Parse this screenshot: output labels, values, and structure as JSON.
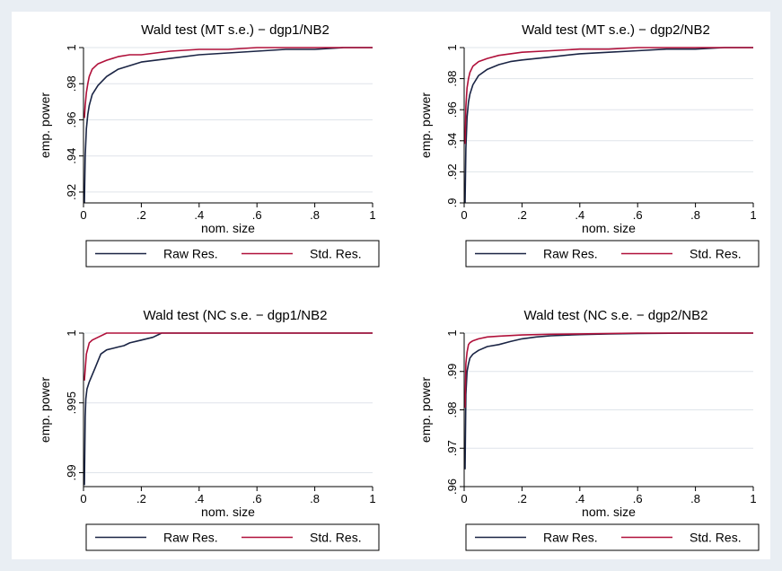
{
  "colors": {
    "raw": "#1a2444",
    "std": "#b0103a",
    "grid": "#dfe4ea",
    "axis": "#000000"
  },
  "chart_data": [
    {
      "type": "line",
      "title": "Wald test (MT s.e.) − dgp1/NB2",
      "xlabel": "nom. size",
      "ylabel": "emp. power",
      "xlim": [
        0,
        1
      ],
      "ylim": [
        0.914,
        1.0
      ],
      "xticks": [
        0,
        0.2,
        0.4,
        0.6,
        0.8,
        1
      ],
      "xtick_labels": [
        "0",
        ".2",
        ".4",
        ".6",
        ".8",
        "1"
      ],
      "yticks": [
        0.92,
        0.94,
        0.96,
        0.98,
        1
      ],
      "ytick_labels": [
        ".92",
        ".94",
        ".96",
        ".98",
        "1"
      ],
      "grid": true,
      "legend_position": "bottom",
      "series": [
        {
          "name": "Raw Res.",
          "color_key": "raw",
          "x": [
            0.003,
            0.006,
            0.01,
            0.015,
            0.02,
            0.03,
            0.05,
            0.08,
            0.12,
            0.16,
            0.2,
            0.3,
            0.4,
            0.5,
            0.6,
            0.7,
            0.8,
            0.9,
            1.0
          ],
          "y": [
            0.914,
            0.94,
            0.955,
            0.963,
            0.968,
            0.974,
            0.979,
            0.984,
            0.988,
            0.99,
            0.992,
            0.994,
            0.996,
            0.997,
            0.998,
            0.999,
            0.999,
            1.0,
            1.0
          ]
        },
        {
          "name": "Std. Res.",
          "color_key": "std",
          "x": [
            0.003,
            0.006,
            0.01,
            0.015,
            0.02,
            0.03,
            0.05,
            0.08,
            0.12,
            0.16,
            0.2,
            0.3,
            0.4,
            0.5,
            0.6,
            0.7,
            0.8,
            0.9,
            1.0
          ],
          "y": [
            0.961,
            0.968,
            0.975,
            0.98,
            0.984,
            0.988,
            0.991,
            0.993,
            0.995,
            0.996,
            0.996,
            0.998,
            0.999,
            0.999,
            1.0,
            1.0,
            1.0,
            1.0,
            1.0
          ]
        }
      ]
    },
    {
      "type": "line",
      "title": "Wald test (MT s.e.) − dgp2/NB2",
      "xlabel": "nom. size",
      "ylabel": "emp. power",
      "xlim": [
        0,
        1
      ],
      "ylim": [
        0.9,
        1.0
      ],
      "xticks": [
        0,
        0.2,
        0.4,
        0.6,
        0.8,
        1
      ],
      "xtick_labels": [
        "0",
        ".2",
        ".4",
        ".6",
        ".8",
        "1"
      ],
      "yticks": [
        0.9,
        0.92,
        0.94,
        0.96,
        0.98,
        1
      ],
      "ytick_labels": [
        ".9",
        ".92",
        ".94",
        ".96",
        ".98",
        "1"
      ],
      "grid": true,
      "legend_position": "bottom",
      "series": [
        {
          "name": "Raw Res.",
          "color_key": "raw",
          "x": [
            0.003,
            0.006,
            0.01,
            0.015,
            0.02,
            0.03,
            0.05,
            0.08,
            0.12,
            0.16,
            0.2,
            0.3,
            0.4,
            0.5,
            0.6,
            0.7,
            0.8,
            0.9,
            1.0
          ],
          "y": [
            0.9,
            0.935,
            0.955,
            0.965,
            0.97,
            0.976,
            0.982,
            0.986,
            0.989,
            0.991,
            0.992,
            0.994,
            0.996,
            0.997,
            0.998,
            0.999,
            0.999,
            1.0,
            1.0
          ]
        },
        {
          "name": "Std. Res.",
          "color_key": "std",
          "x": [
            0.003,
            0.006,
            0.01,
            0.015,
            0.02,
            0.03,
            0.05,
            0.08,
            0.12,
            0.16,
            0.2,
            0.3,
            0.4,
            0.5,
            0.6,
            0.7,
            0.8,
            0.9,
            1.0
          ],
          "y": [
            0.938,
            0.962,
            0.974,
            0.98,
            0.984,
            0.988,
            0.991,
            0.993,
            0.995,
            0.996,
            0.997,
            0.998,
            0.999,
            0.999,
            1.0,
            1.0,
            1.0,
            1.0,
            1.0
          ]
        }
      ]
    },
    {
      "type": "line",
      "title": "Wald test (NC s.e. − dgp1/NB2",
      "xlabel": "nom. size",
      "ylabel": "emp. power",
      "xlim": [
        0,
        1
      ],
      "ylim": [
        0.989,
        1.0
      ],
      "xticks": [
        0,
        0.2,
        0.4,
        0.6,
        0.8,
        1
      ],
      "xtick_labels": [
        "0",
        ".2",
        ".4",
        ".6",
        ".8",
        "1"
      ],
      "yticks": [
        0.99,
        0.995,
        1
      ],
      "ytick_labels": [
        ".99",
        ".995",
        "1"
      ],
      "grid": true,
      "legend_position": "bottom",
      "series": [
        {
          "name": "Raw Res.",
          "color_key": "raw",
          "x": [
            0.003,
            0.006,
            0.008,
            0.012,
            0.02,
            0.03,
            0.04,
            0.05,
            0.06,
            0.08,
            0.1,
            0.12,
            0.14,
            0.16,
            0.2,
            0.24,
            0.26,
            0.27,
            0.4,
            0.6,
            0.8,
            1.0
          ],
          "y": [
            0.9891,
            0.994,
            0.9953,
            0.996,
            0.9965,
            0.997,
            0.9975,
            0.998,
            0.9985,
            0.9988,
            0.9989,
            0.999,
            0.9991,
            0.9993,
            0.9995,
            0.9997,
            0.9999,
            1.0,
            1.0,
            1.0,
            1.0,
            1.0
          ]
        },
        {
          "name": "Std. Res.",
          "color_key": "std",
          "x": [
            0.003,
            0.01,
            0.02,
            0.03,
            0.05,
            0.08,
            0.1,
            0.2,
            0.4,
            0.6,
            0.8,
            1.0
          ],
          "y": [
            0.9966,
            0.9985,
            0.9993,
            0.9995,
            0.9997,
            1.0,
            1.0,
            1.0,
            1.0,
            1.0,
            1.0,
            1.0
          ]
        }
      ]
    },
    {
      "type": "line",
      "title": "Wald test (NC s.e. − dgp2/NB2",
      "xlabel": "nom. size",
      "ylabel": "emp. power",
      "xlim": [
        0,
        1
      ],
      "ylim": [
        0.96,
        1.0
      ],
      "xticks": [
        0,
        0.2,
        0.4,
        0.6,
        0.8,
        1
      ],
      "xtick_labels": [
        "0",
        ".2",
        ".4",
        ".6",
        ".8",
        "1"
      ],
      "yticks": [
        0.96,
        0.97,
        0.98,
        0.99,
        1
      ],
      "ytick_labels": [
        ".96",
        ".97",
        ".98",
        ".99",
        "1"
      ],
      "grid": true,
      "legend_position": "bottom",
      "series": [
        {
          "name": "Raw Res.",
          "color_key": "raw",
          "x": [
            0.003,
            0.006,
            0.01,
            0.015,
            0.02,
            0.03,
            0.05,
            0.08,
            0.12,
            0.16,
            0.2,
            0.25,
            0.3,
            0.4,
            0.5,
            0.6,
            0.8,
            1.0
          ],
          "y": [
            0.9645,
            0.984,
            0.99,
            0.992,
            0.9935,
            0.9945,
            0.9955,
            0.9965,
            0.997,
            0.9978,
            0.9985,
            0.999,
            0.9993,
            0.9996,
            0.9998,
            0.9999,
            1.0,
            1.0
          ]
        },
        {
          "name": "Std. Res.",
          "color_key": "std",
          "x": [
            0.003,
            0.006,
            0.01,
            0.015,
            0.02,
            0.03,
            0.05,
            0.08,
            0.12,
            0.2,
            0.3,
            0.4,
            0.6,
            0.8,
            1.0
          ],
          "y": [
            0.9805,
            0.992,
            0.995,
            0.997,
            0.9975,
            0.998,
            0.9985,
            0.999,
            0.9992,
            0.9995,
            0.9997,
            0.9998,
            1.0,
            1.0,
            1.0
          ]
        }
      ]
    }
  ]
}
